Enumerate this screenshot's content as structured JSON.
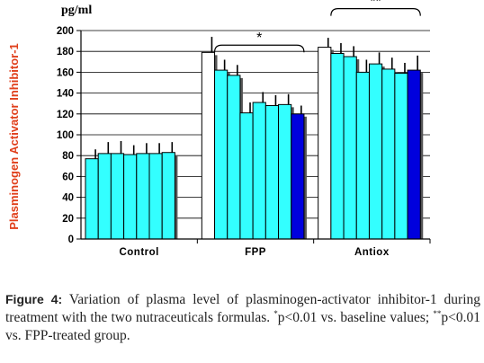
{
  "chart_data": {
    "type": "bar",
    "unit_label": "pg/ml",
    "ylabel": "Plasminogen Activator Inhibitor-1",
    "xlabel": "",
    "ylim": [
      0,
      200
    ],
    "yticks": [
      0,
      20,
      40,
      60,
      80,
      100,
      120,
      140,
      160,
      180,
      200
    ],
    "grid": true,
    "colors": {
      "baseline": "#ffffff",
      "treatment": "#33ffff",
      "final": "#0000dd",
      "ylabel": "#e0401c"
    },
    "groups": [
      {
        "name": "Control",
        "values": [
          77,
          82,
          82,
          81,
          82,
          82,
          83,
          0
        ],
        "errors": [
          9,
          11,
          12,
          9,
          10,
          10,
          10,
          0
        ],
        "colors": [
          "treatment",
          "treatment",
          "treatment",
          "treatment",
          "treatment",
          "treatment",
          "treatment",
          "baseline"
        ]
      },
      {
        "name": "FPP",
        "values": [
          179,
          162,
          157,
          121,
          131,
          128,
          129,
          120
        ],
        "errors": [
          15,
          10,
          10,
          10,
          10,
          10,
          10,
          8
        ],
        "colors": [
          "baseline",
          "treatment",
          "treatment",
          "treatment",
          "treatment",
          "treatment",
          "treatment",
          "final"
        ]
      },
      {
        "name": "Antiox",
        "values": [
          184,
          178,
          175,
          160,
          168,
          163,
          159,
          162
        ],
        "errors": [
          9,
          10,
          10,
          12,
          11,
          11,
          10,
          14
        ],
        "colors": [
          "baseline",
          "treatment",
          "treatment",
          "treatment",
          "treatment",
          "treatment",
          "treatment",
          "final"
        ]
      }
    ],
    "annotations": [
      {
        "text": "*",
        "group": "FPP",
        "from_bar": 1,
        "to_bar": 7,
        "y": 186
      },
      {
        "text": "**",
        "group": "Antiox",
        "from_bar": 1,
        "to_bar": 7,
        "y": 221
      }
    ]
  },
  "caption": {
    "figure_label": "Figure 4:",
    "text": "Variation of plasma level of plasminogen-activator inhibitor-1 during treatment with the two nutraceuticals formulas.",
    "note1_mark": "*",
    "note1_text": "p<0.01 vs. baseline values;",
    "note2_mark": "**",
    "note2_text": "p<0.01 vs. FPP-treated group."
  }
}
